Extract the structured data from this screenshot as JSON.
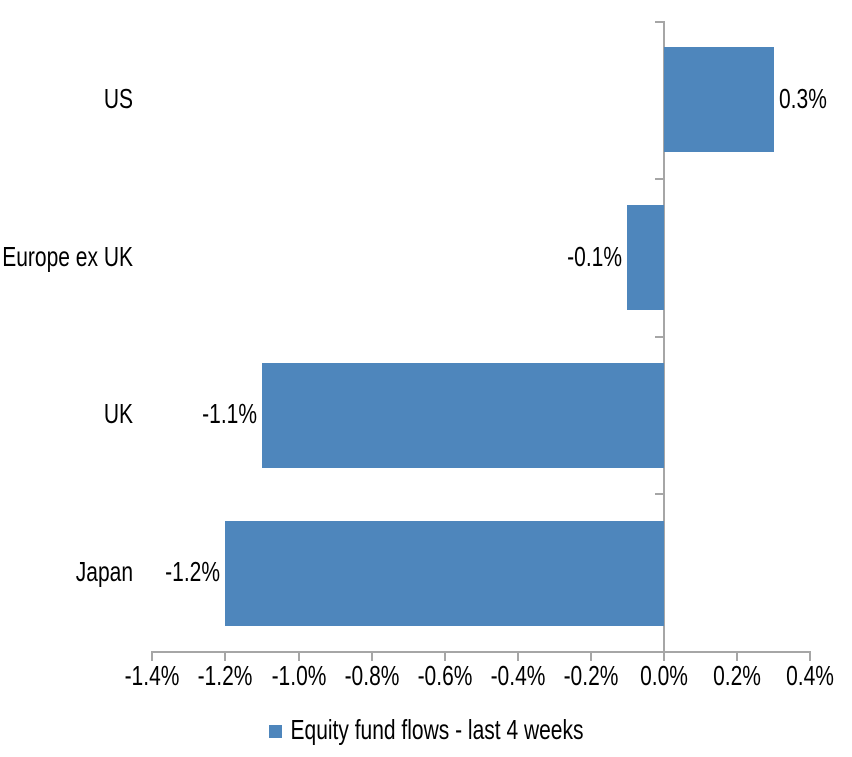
{
  "chart_data": {
    "type": "bar",
    "orientation": "horizontal",
    "title": "",
    "xlabel": "",
    "ylabel": "",
    "categories": [
      "US",
      "Europe ex UK",
      "UK",
      "Japan"
    ],
    "values": [
      0.3,
      -0.1,
      -1.1,
      -1.2
    ],
    "data_labels": [
      "0.3%",
      "-0.1%",
      "-1.1%",
      "-1.2%"
    ],
    "series_name": "Equity fund flows - last 4 weeks",
    "x_ticks_pct": [
      -1.4,
      -1.2,
      -1.0,
      -0.8,
      -0.6,
      -0.4,
      -0.2,
      0.0,
      0.2,
      0.4
    ],
    "x_tick_labels": [
      "-1.4%",
      "-1.2%",
      "-1.0%",
      "-0.8%",
      "-0.6%",
      "-0.4%",
      "-0.2%",
      "0.0%",
      "0.2%",
      "0.4%"
    ],
    "xlim": [
      -1.4,
      0.4
    ],
    "grid": false,
    "legend_position": "bottom",
    "bar_color": "#4E86BC",
    "axis_color": "#A6A6A6",
    "text_color": "#000000",
    "background_color": "#FFFFFF"
  },
  "legend": {
    "items": [
      {
        "label": "Equity fund flows - last 4 weeks",
        "color": "#4E86BC"
      }
    ]
  }
}
